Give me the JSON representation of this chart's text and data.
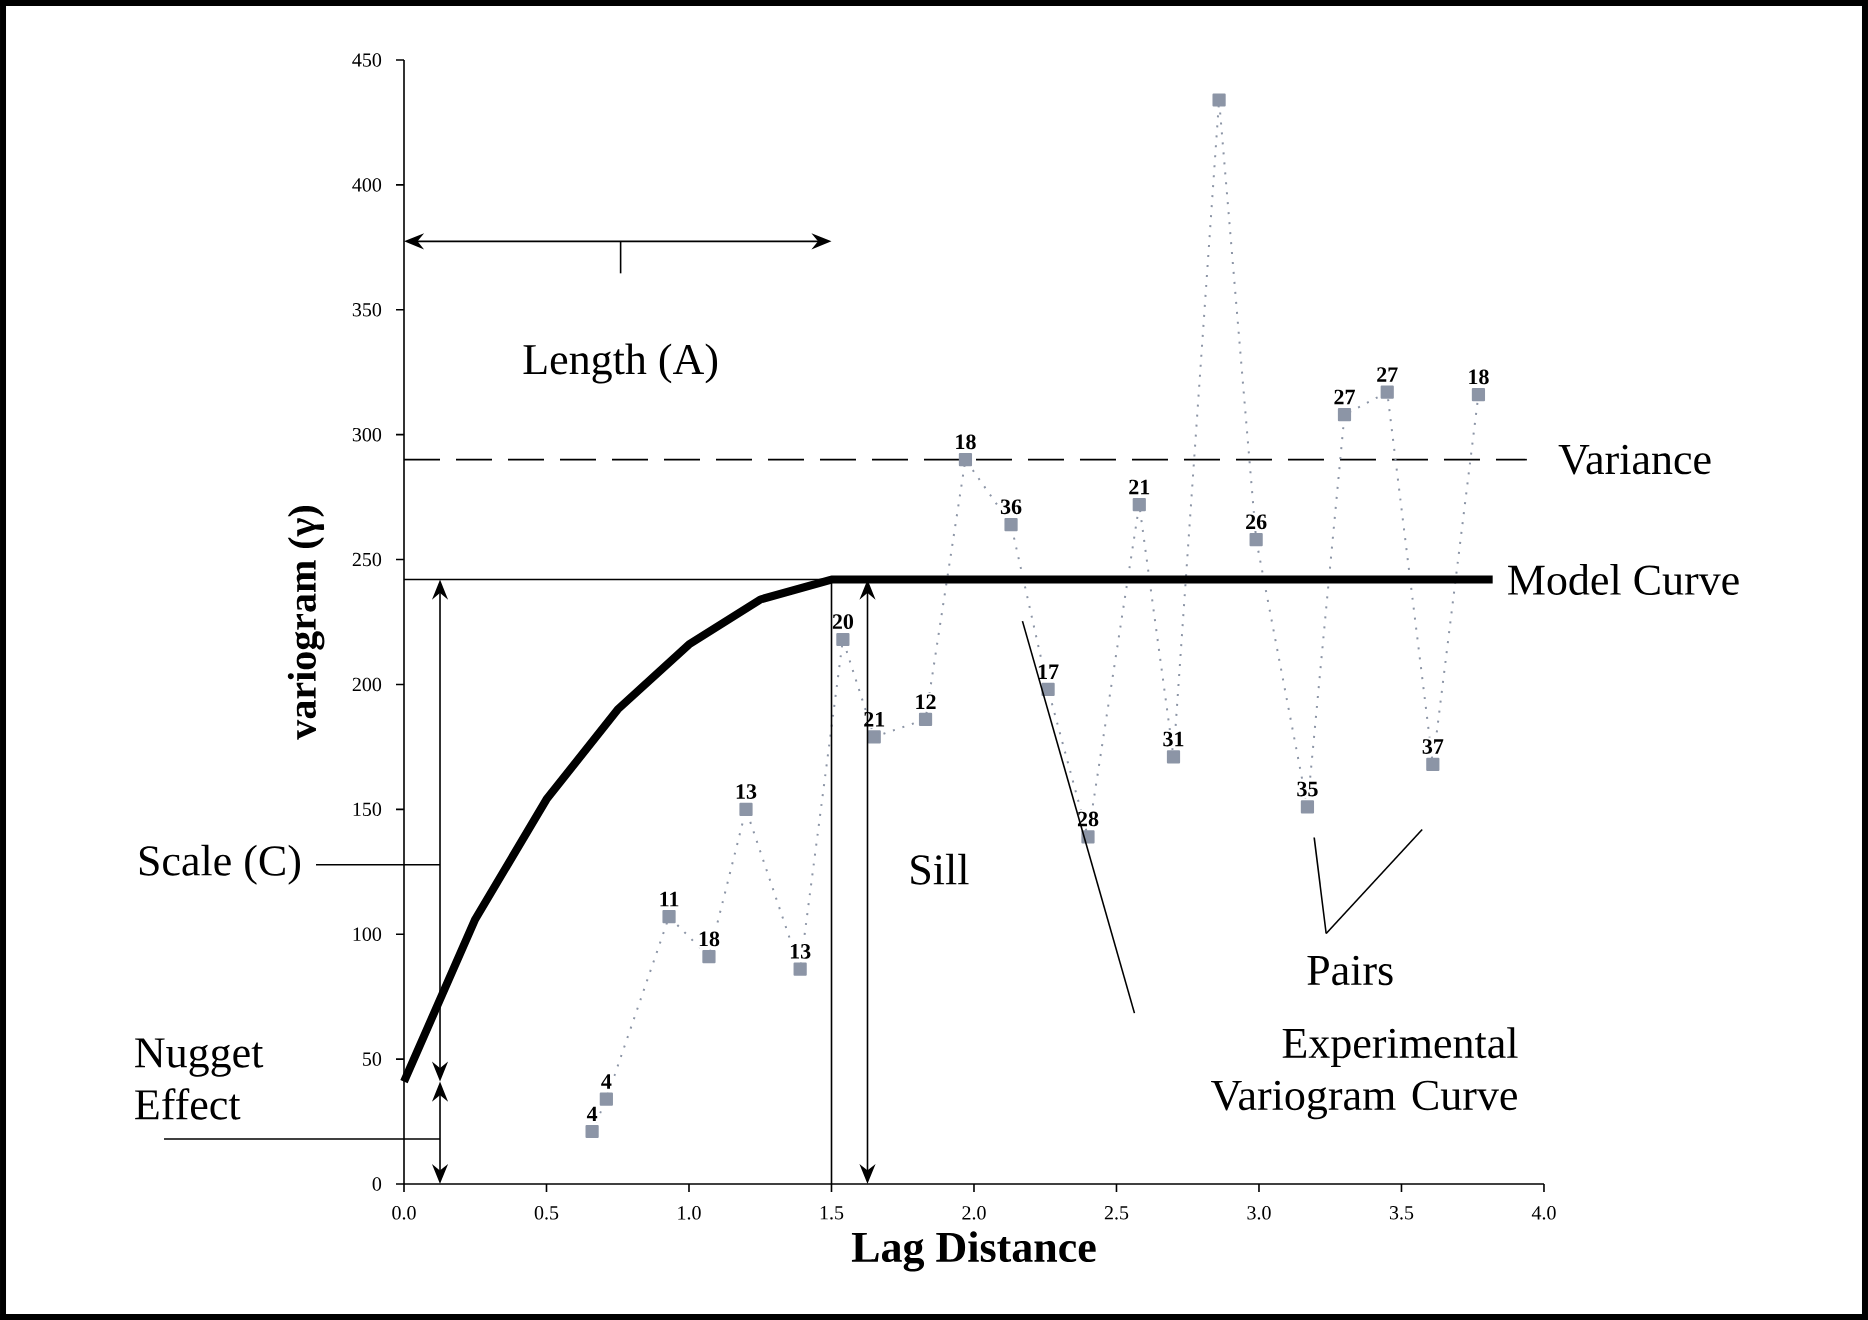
{
  "chart_data": {
    "type": "line",
    "xlabel": "Lag Distance",
    "ylabel": "variogram (γ)",
    "xlim": [
      0,
      4
    ],
    "ylim": [
      0,
      450
    ],
    "xticks": [
      {
        "value": 0,
        "label": "0.0"
      },
      {
        "value": 0.5,
        "label": "0.5"
      },
      {
        "value": 1,
        "label": "1.0"
      },
      {
        "value": 1.5,
        "label": "1.5"
      },
      {
        "value": 2,
        "label": "2.0"
      },
      {
        "value": 2.5,
        "label": "2.5"
      },
      {
        "value": 3,
        "label": "3.0"
      },
      {
        "value": 3.5,
        "label": "3.5"
      },
      {
        "value": 4,
        "label": "4.0"
      }
    ],
    "yticks": [
      0,
      50,
      100,
      150,
      200,
      250,
      300,
      350,
      400,
      450
    ],
    "grid": false,
    "legend": false,
    "series": [
      {
        "color": "#8c95a6",
        "marker": "square",
        "line_style": "dotted",
        "x": [
          0.66,
          0.71,
          0.93,
          1.07,
          1.2,
          1.39,
          1.54,
          1.65,
          1.83,
          1.97,
          2.13,
          2.26,
          2.4,
          2.58,
          2.7,
          2.86,
          2.99,
          3.17,
          3.3,
          3.45,
          3.61,
          3.77
        ],
        "values": [
          21,
          34,
          107,
          91,
          150,
          86,
          218,
          179,
          186,
          290,
          264,
          198,
          139,
          272,
          171,
          434,
          258,
          151,
          308,
          317,
          168,
          316
        ]
      },
      {
        "name": "Model Curve",
        "color": "#000000",
        "marker": "none",
        "line_style": "solid",
        "x": [
          0,
          0.25,
          0.5,
          0.75,
          1.0,
          1.25,
          1.5,
          3.82
        ],
        "values": [
          41,
          106,
          154,
          190,
          216,
          234,
          242,
          242
        ]
      }
    ],
    "ref_lines": [
      {
        "axis": "y",
        "value": 290,
        "label": "Variance",
        "line_style": "dashed",
        "color": "#000000"
      }
    ],
    "annotations": [
      {
        "text": "4",
        "x": 0.66,
        "y": 21
      },
      {
        "text": "4",
        "x": 0.71,
        "y": 34
      },
      {
        "text": "11",
        "x": 0.93,
        "y": 107
      },
      {
        "text": "18",
        "x": 1.07,
        "y": 91
      },
      {
        "text": "13",
        "x": 1.2,
        "y": 150
      },
      {
        "text": "13",
        "x": 1.39,
        "y": 86
      },
      {
        "text": "20",
        "x": 1.54,
        "y": 218
      },
      {
        "text": "21",
        "x": 1.65,
        "y": 179
      },
      {
        "text": "12",
        "x": 1.83,
        "y": 186
      },
      {
        "text": "18",
        "x": 1.97,
        "y": 290
      },
      {
        "text": "36",
        "x": 2.13,
        "y": 264
      },
      {
        "text": "17",
        "x": 2.26,
        "y": 198
      },
      {
        "text": "28",
        "x": 2.4,
        "y": 139
      },
      {
        "text": "21",
        "x": 2.58,
        "y": 272
      },
      {
        "text": "31",
        "x": 2.7,
        "y": 171
      },
      {
        "text": "26",
        "x": 2.99,
        "y": 258
      },
      {
        "text": "35",
        "x": 3.17,
        "y": 151
      },
      {
        "text": "27",
        "x": 3.3,
        "y": 308
      },
      {
        "text": "27",
        "x": 3.45,
        "y": 317
      },
      {
        "text": "37",
        "x": 3.61,
        "y": 168
      },
      {
        "text": "18",
        "x": 3.77,
        "y": 316
      },
      "Length (A)",
      "Scale (C)",
      "Nugget Effect",
      "Sill",
      "Pairs",
      "Experimental Variogram Curve"
    ]
  }
}
